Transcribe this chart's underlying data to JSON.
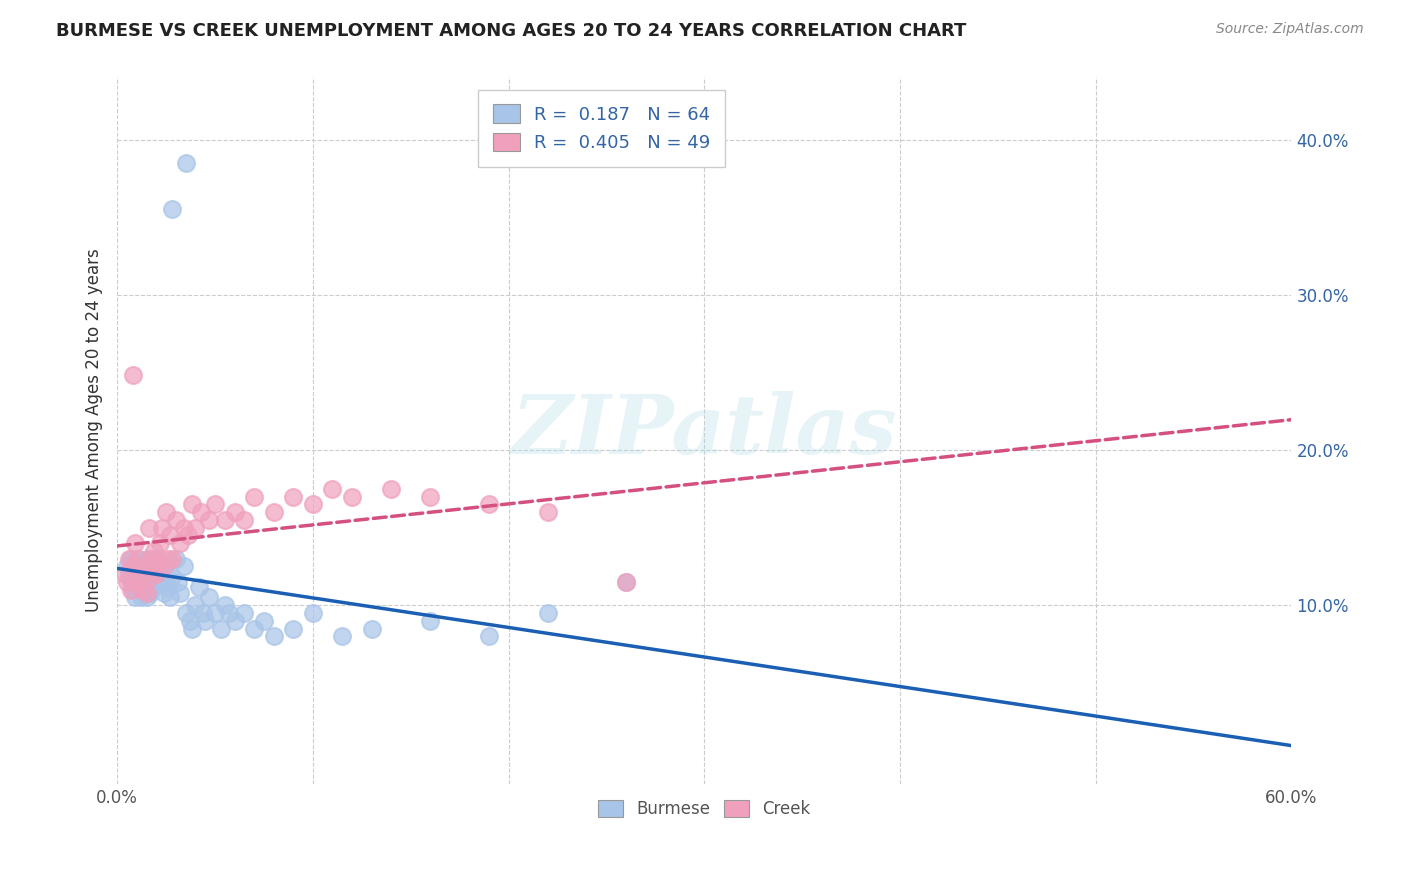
{
  "title": "BURMESE VS CREEK UNEMPLOYMENT AMONG AGES 20 TO 24 YEARS CORRELATION CHART",
  "source": "Source: ZipAtlas.com",
  "ylabel": "Unemployment Among Ages 20 to 24 years",
  "xlim": [
    0.0,
    0.6
  ],
  "ylim": [
    -0.015,
    0.44
  ],
  "xtick_positions": [
    0.0,
    0.6
  ],
  "xtick_labels": [
    "0.0%",
    "60.0%"
  ],
  "ytick_positions": [
    0.1,
    0.2,
    0.3,
    0.4
  ],
  "ytick_labels": [
    "10.0%",
    "20.0%",
    "30.0%",
    "40.0%"
  ],
  "grid_yticks": [
    0.1,
    0.2,
    0.3,
    0.4
  ],
  "grid_xticks": [
    0.0,
    0.1,
    0.2,
    0.3,
    0.4,
    0.5,
    0.6
  ],
  "burmese_color": "#a8c4e8",
  "creek_color": "#f0a0bc",
  "burmese_line_color": "#1a5fb4",
  "creek_line_color": "#d45080",
  "burmese_R": 0.187,
  "burmese_N": 64,
  "creek_R": 0.405,
  "creek_N": 49,
  "legend_R_color": "#3465a4",
  "background_color": "#ffffff",
  "watermark": "ZIPatlas",
  "burmese_x": [
    0.005,
    0.006,
    0.007,
    0.007,
    0.008,
    0.009,
    0.009,
    0.01,
    0.01,
    0.011,
    0.011,
    0.012,
    0.012,
    0.013,
    0.013,
    0.014,
    0.014,
    0.015,
    0.015,
    0.016,
    0.016,
    0.017,
    0.018,
    0.019,
    0.02,
    0.021,
    0.022,
    0.023,
    0.024,
    0.025,
    0.026,
    0.027,
    0.028,
    0.03,
    0.031,
    0.032,
    0.034,
    0.035,
    0.037,
    0.038,
    0.04,
    0.042,
    0.044,
    0.045,
    0.047,
    0.05,
    0.053,
    0.055,
    0.057,
    0.06,
    0.065,
    0.07,
    0.075,
    0.08,
    0.09,
    0.1,
    0.115,
    0.13,
    0.16,
    0.19,
    0.22,
    0.26,
    0.035,
    0.028
  ],
  "burmese_y": [
    0.125,
    0.12,
    0.115,
    0.13,
    0.11,
    0.105,
    0.12,
    0.115,
    0.13,
    0.11,
    0.12,
    0.105,
    0.115,
    0.108,
    0.125,
    0.118,
    0.112,
    0.13,
    0.105,
    0.122,
    0.115,
    0.108,
    0.118,
    0.112,
    0.12,
    0.13,
    0.125,
    0.115,
    0.108,
    0.12,
    0.112,
    0.105,
    0.118,
    0.13,
    0.115,
    0.108,
    0.125,
    0.095,
    0.09,
    0.085,
    0.1,
    0.112,
    0.095,
    0.09,
    0.105,
    0.095,
    0.085,
    0.1,
    0.095,
    0.09,
    0.095,
    0.085,
    0.09,
    0.08,
    0.085,
    0.095,
    0.08,
    0.085,
    0.09,
    0.08,
    0.095,
    0.115,
    0.385,
    0.355
  ],
  "creek_x": [
    0.004,
    0.005,
    0.006,
    0.007,
    0.008,
    0.009,
    0.01,
    0.011,
    0.012,
    0.013,
    0.014,
    0.015,
    0.016,
    0.017,
    0.018,
    0.019,
    0.02,
    0.021,
    0.022,
    0.023,
    0.024,
    0.025,
    0.026,
    0.027,
    0.028,
    0.03,
    0.032,
    0.034,
    0.036,
    0.038,
    0.04,
    0.043,
    0.047,
    0.05,
    0.055,
    0.06,
    0.065,
    0.07,
    0.08,
    0.09,
    0.1,
    0.11,
    0.12,
    0.14,
    0.16,
    0.19,
    0.22,
    0.26,
    0.008
  ],
  "creek_y": [
    0.12,
    0.115,
    0.13,
    0.11,
    0.125,
    0.14,
    0.115,
    0.13,
    0.12,
    0.11,
    0.125,
    0.108,
    0.15,
    0.118,
    0.13,
    0.135,
    0.12,
    0.128,
    0.14,
    0.15,
    0.125,
    0.16,
    0.13,
    0.145,
    0.13,
    0.155,
    0.14,
    0.15,
    0.145,
    0.165,
    0.15,
    0.16,
    0.155,
    0.165,
    0.155,
    0.16,
    0.155,
    0.17,
    0.16,
    0.17,
    0.165,
    0.175,
    0.17,
    0.175,
    0.17,
    0.165,
    0.16,
    0.115,
    0.248
  ]
}
